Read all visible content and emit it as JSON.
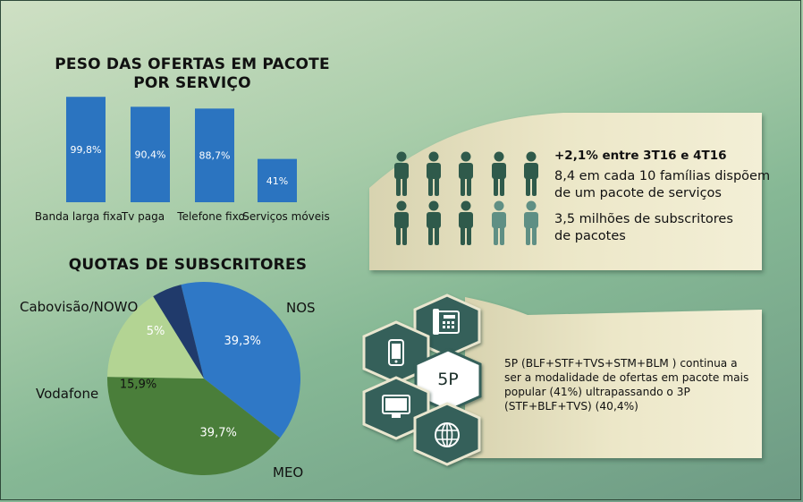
{
  "bar_section": {
    "title_line1": "PESO DAS OFERTAS EM PACOTE",
    "title_line2": "POR SERVIÇO"
  },
  "pie_section": {
    "title": "QUOTAS DE SUBSCRITORES"
  },
  "chart_data": [
    {
      "type": "bar",
      "title": "PESO DAS OFERTAS EM PACOTE POR SERVIÇO",
      "categories": [
        "Banda larga fixa",
        "Tv paga",
        "Telefone fixo",
        "Serviços móveis"
      ],
      "values": [
        99.8,
        90.4,
        88.7,
        41
      ],
      "value_labels": [
        "99,8%",
        "90,4%",
        "88,7%",
        "41%"
      ],
      "ylim": [
        0,
        100
      ],
      "color": "#2b74c0",
      "grid": false
    },
    {
      "type": "pie",
      "title": "QUOTAS DE SUBSCRITORES",
      "slices": [
        {
          "name": "NOS",
          "value": 39.3,
          "label": "39,3%",
          "color": "#2f78c6"
        },
        {
          "name": "MEO",
          "value": 39.7,
          "label": "39,7%",
          "color": "#4a7e3a"
        },
        {
          "name": "Vodafone",
          "value": 15.9,
          "label": "15,9%",
          "color": "#b3d493"
        },
        {
          "name": "Cabovisão/NOWO",
          "value": 5,
          "label": "5%",
          "color": "#203a6b"
        }
      ]
    }
  ],
  "family_card": {
    "highlight": "+2,1% entre 3T16 e 4T16",
    "stat1_line1": "8,4 em cada 10 famílias dispõem",
    "stat1_line2": "de um pacote de serviços",
    "stat2_line1": "3,5 milhões de subscritores",
    "stat2_line2": "de pacotes",
    "figures_total": 10,
    "figures_dark": 8.4,
    "dark_color": "#2f5a4b",
    "light_color": "#5f8f84"
  },
  "package_card": {
    "badge": "5P",
    "line1": "5P (BLF+STF+TVS+STM+BLM ) continua a",
    "line2": "ser a modalidade de ofertas em pacote mais",
    "line3": "popular (41%) ultrapassando o 3P",
    "line4": "(STF+BLF+TVS) (40,4%)",
    "hex_color": "#35605a",
    "icons": [
      "telephone-icon",
      "mobile-phone-icon",
      "monitor-icon",
      "globe-icon"
    ]
  }
}
